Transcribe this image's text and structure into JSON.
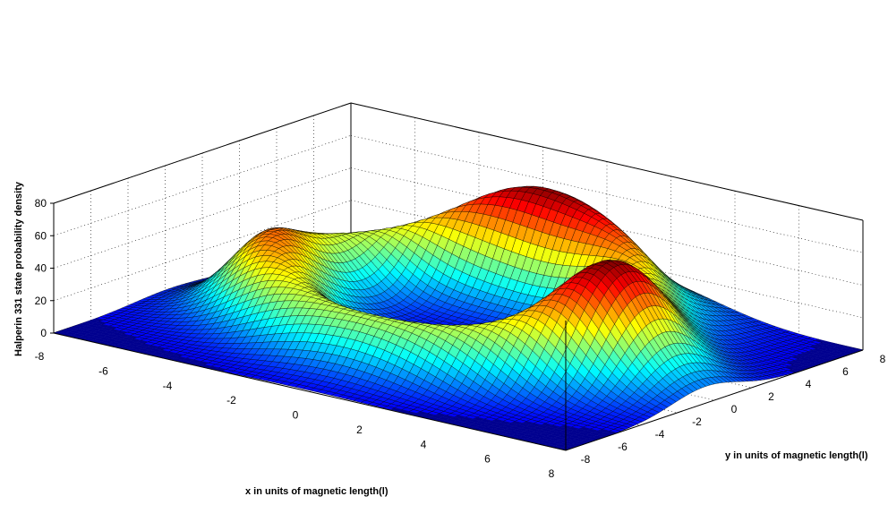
{
  "chart_data": {
    "type": "surface",
    "title": "",
    "xlabel": "x in units of magnetic length(l)",
    "ylabel": "y in units of magnetic length(l)",
    "zlabel": "Halperin 331 state probability density",
    "xlim": [
      -8,
      8
    ],
    "ylim": [
      -8,
      8
    ],
    "zlim": [
      0,
      80
    ],
    "x_ticks": [
      "-8",
      "-6",
      "-4",
      "-2",
      "0",
      "2",
      "4",
      "6",
      "8"
    ],
    "y_ticks": [
      "-8",
      "-6",
      "-4",
      "-2",
      "0",
      "2",
      "4",
      "6",
      "8"
    ],
    "z_ticks": [
      "0",
      "20",
      "40",
      "60",
      "80"
    ],
    "grid": true,
    "colormap": "jet",
    "surface": {
      "shape": "ring with four peaks",
      "ring_radius": 5,
      "peaks": [
        {
          "x": 5,
          "y": -0.5,
          "z": 74
        },
        {
          "x": -1,
          "y": 5.5,
          "z": 68
        },
        {
          "x": -4.5,
          "y": -2,
          "z": 55
        },
        {
          "x": 2,
          "y": 6,
          "z": 57
        }
      ],
      "grid_points": 71
    }
  }
}
